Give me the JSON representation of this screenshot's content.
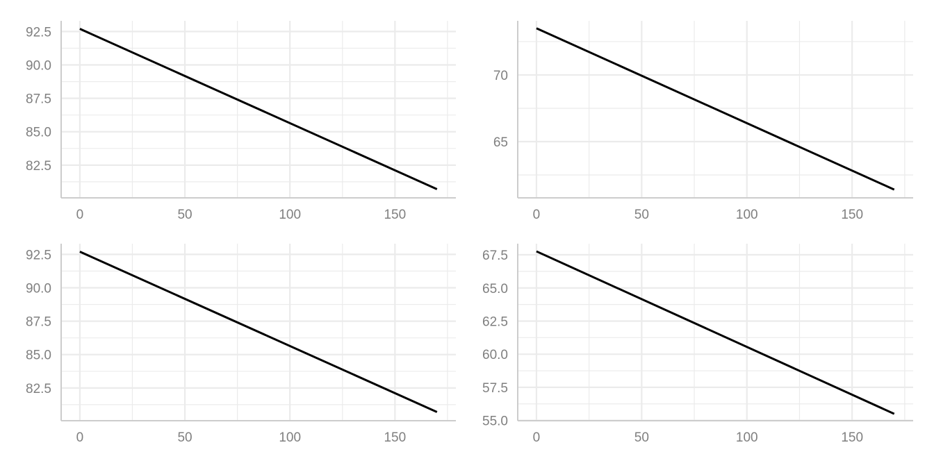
{
  "chart_data": [
    {
      "type": "line",
      "xlabel": "",
      "ylabel": "",
      "grid": true,
      "xlim": [
        -8.9,
        179
      ],
      "ylim": [
        80.05,
        93.3
      ],
      "xticks": [
        0,
        50,
        100,
        150
      ],
      "yticks": [
        82.5,
        85.0,
        87.5,
        90.0,
        92.5
      ],
      "ytick_labels": [
        "82.5",
        "85.0",
        "87.5",
        "90.0",
        "92.5"
      ],
      "x": [
        0,
        170
      ],
      "y": [
        92.7,
        80.7
      ]
    },
    {
      "type": "line",
      "xlabel": "",
      "ylabel": "",
      "grid": true,
      "xlim": [
        -8.9,
        179
      ],
      "ylim": [
        60.78,
        74.06
      ],
      "xticks": [
        0,
        50,
        100,
        150
      ],
      "yticks": [
        65,
        70
      ],
      "ytick_labels": [
        "65",
        "70"
      ],
      "x": [
        0,
        170
      ],
      "y": [
        73.5,
        61.4
      ]
    },
    {
      "type": "line",
      "xlabel": "",
      "ylabel": "",
      "grid": true,
      "xlim": [
        -8.9,
        179
      ],
      "ylim": [
        80.05,
        93.3
      ],
      "xticks": [
        0,
        50,
        100,
        150
      ],
      "yticks": [
        82.5,
        85.0,
        87.5,
        90.0,
        92.5
      ],
      "ytick_labels": [
        "82.5",
        "85.0",
        "87.5",
        "90.0",
        "92.5"
      ],
      "x": [
        0,
        170
      ],
      "y": [
        92.7,
        80.7
      ]
    },
    {
      "type": "line",
      "xlabel": "",
      "ylabel": "",
      "grid": true,
      "xlim": [
        -8.9,
        179
      ],
      "ylim": [
        54.98,
        68.34
      ],
      "xticks": [
        0,
        50,
        100,
        150
      ],
      "yticks": [
        55.0,
        57.5,
        60.0,
        62.5,
        65.0,
        67.5
      ],
      "ytick_labels": [
        "55.0",
        "57.5",
        "60.0",
        "62.5",
        "65.0",
        "67.5"
      ],
      "x": [
        0,
        170
      ],
      "y": [
        67.76,
        55.5
      ]
    }
  ],
  "colors": {
    "line": "#000000",
    "grid": "#ebebeb",
    "axis": "#cccccc",
    "tick_text": "#7f7f7f"
  }
}
